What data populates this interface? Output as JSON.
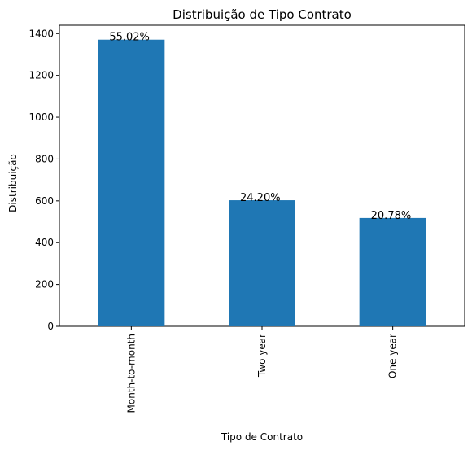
{
  "chart_data": {
    "type": "bar",
    "title": "Distribuição de Tipo Contrato",
    "xlabel": "Tipo de Contrato",
    "ylabel": "Distribuição",
    "categories": [
      "Month-to-month",
      "Two year",
      "One year"
    ],
    "values": [
      1371,
      603,
      518
    ],
    "data_labels": [
      "55.02%",
      "24.20%",
      "20.78%"
    ],
    "ylim": [
      0,
      1440
    ],
    "yticks": [
      0,
      200,
      400,
      600,
      800,
      1000,
      1200,
      1400
    ],
    "grid": false,
    "legend": "none",
    "bar_color": "#1f77b4"
  }
}
